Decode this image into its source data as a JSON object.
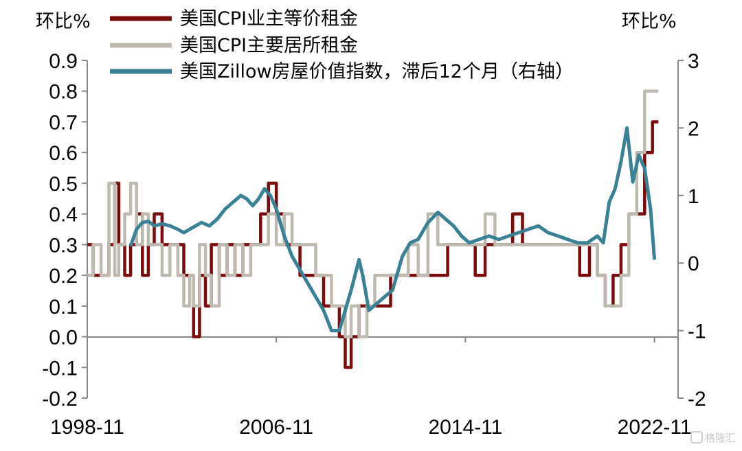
{
  "chart_data": {
    "type": "line",
    "left_axis_unit": "环比%",
    "right_axis_unit": "环比%",
    "x_tick_labels": [
      "1998-11",
      "2006-11",
      "2014-11",
      "2022-11"
    ],
    "x_range": [
      "1998-11",
      "2023-11"
    ],
    "ylim_left": [
      -0.2,
      0.9
    ],
    "ylim_right": [
      -2,
      3
    ],
    "y_left_ticks": [
      "0.9",
      "0.8",
      "0.7",
      "0.6",
      "0.5",
      "0.4",
      "0.3",
      "0.2",
      "0.1",
      "0.0",
      "-0.1",
      "-0.2"
    ],
    "y_right_ticks": [
      "3",
      "2",
      "1",
      "0",
      "-1",
      "-2"
    ],
    "grid": false,
    "legend_position": "top",
    "series": [
      {
        "name": "美国CPI业主等价租金",
        "axis": "left",
        "color": "#7b0c0c",
        "points": [
          [
            "1998-11",
            0.3
          ],
          [
            "1999-02",
            0.2
          ],
          [
            "1999-06",
            0.2
          ],
          [
            "1999-10",
            0.3
          ],
          [
            "2000-01",
            0.5
          ],
          [
            "2000-03",
            0.3
          ],
          [
            "2000-06",
            0.2
          ],
          [
            "2000-09",
            0.3
          ],
          [
            "2000-12",
            0.4
          ],
          [
            "2001-03",
            0.2
          ],
          [
            "2001-06",
            0.3
          ],
          [
            "2001-09",
            0.4
          ],
          [
            "2002-01",
            0.3
          ],
          [
            "2002-05",
            0.3
          ],
          [
            "2002-09",
            0.3
          ],
          [
            "2002-12",
            0.2
          ],
          [
            "2003-03",
            0.2
          ],
          [
            "2003-05",
            0.0
          ],
          [
            "2003-08",
            0.2
          ],
          [
            "2003-11",
            0.1
          ],
          [
            "2004-02",
            0.3
          ],
          [
            "2004-06",
            0.2
          ],
          [
            "2004-10",
            0.3
          ],
          [
            "2005-02",
            0.2
          ],
          [
            "2005-06",
            0.3
          ],
          [
            "2005-10",
            0.3
          ],
          [
            "2006-03",
            0.4
          ],
          [
            "2006-07",
            0.5
          ],
          [
            "2006-11",
            0.4
          ],
          [
            "2007-03",
            0.3
          ],
          [
            "2007-07",
            0.3
          ],
          [
            "2007-11",
            0.2
          ],
          [
            "2008-03",
            0.2
          ],
          [
            "2008-07",
            0.2
          ],
          [
            "2008-11",
            0.1
          ],
          [
            "2009-03",
            0.1
          ],
          [
            "2009-07",
            0.0
          ],
          [
            "2009-10",
            -0.1
          ],
          [
            "2010-01",
            0.0
          ],
          [
            "2010-05",
            0.1
          ],
          [
            "2010-09",
            0.1
          ],
          [
            "2011-01",
            0.1
          ],
          [
            "2011-05",
            0.1
          ],
          [
            "2011-09",
            0.2
          ],
          [
            "2012-01",
            0.2
          ],
          [
            "2012-06",
            0.2
          ],
          [
            "2012-11",
            0.2
          ],
          [
            "2013-04",
            0.2
          ],
          [
            "2013-09",
            0.2
          ],
          [
            "2014-02",
            0.3
          ],
          [
            "2014-07",
            0.3
          ],
          [
            "2014-11",
            0.3
          ],
          [
            "2015-04",
            0.2
          ],
          [
            "2015-09",
            0.3
          ],
          [
            "2016-02",
            0.3
          ],
          [
            "2016-07",
            0.3
          ],
          [
            "2016-11",
            0.4
          ],
          [
            "2017-04",
            0.3
          ],
          [
            "2017-09",
            0.3
          ],
          [
            "2018-02",
            0.3
          ],
          [
            "2018-07",
            0.3
          ],
          [
            "2018-11",
            0.3
          ],
          [
            "2019-04",
            0.3
          ],
          [
            "2019-09",
            0.2
          ],
          [
            "2020-02",
            0.3
          ],
          [
            "2020-06",
            0.2
          ],
          [
            "2020-10",
            0.1
          ],
          [
            "2021-02",
            0.2
          ],
          [
            "2021-06",
            0.3
          ],
          [
            "2021-10",
            0.4
          ],
          [
            "2022-02",
            0.4
          ],
          [
            "2022-06",
            0.6
          ],
          [
            "2022-10",
            0.7
          ],
          [
            "2023-01",
            0.7
          ]
        ]
      },
      {
        "name": "美国CPI主要居所租金",
        "axis": "left",
        "color": "#bfbab0",
        "points": [
          [
            "1998-11",
            0.2
          ],
          [
            "1999-02",
            0.3
          ],
          [
            "1999-06",
            0.2
          ],
          [
            "1999-10",
            0.5
          ],
          [
            "2000-01",
            0.2
          ],
          [
            "2000-03",
            0.3
          ],
          [
            "2000-06",
            0.4
          ],
          [
            "2000-09",
            0.5
          ],
          [
            "2000-12",
            0.3
          ],
          [
            "2001-03",
            0.4
          ],
          [
            "2001-06",
            0.3
          ],
          [
            "2001-09",
            0.3
          ],
          [
            "2002-01",
            0.2
          ],
          [
            "2002-05",
            0.3
          ],
          [
            "2002-09",
            0.2
          ],
          [
            "2002-12",
            0.1
          ],
          [
            "2003-03",
            0.2
          ],
          [
            "2003-05",
            0.1
          ],
          [
            "2003-08",
            0.3
          ],
          [
            "2003-11",
            0.2
          ],
          [
            "2004-02",
            0.1
          ],
          [
            "2004-06",
            0.3
          ],
          [
            "2004-10",
            0.2
          ],
          [
            "2005-02",
            0.3
          ],
          [
            "2005-06",
            0.2
          ],
          [
            "2005-10",
            0.3
          ],
          [
            "2006-03",
            0.3
          ],
          [
            "2006-07",
            0.4
          ],
          [
            "2006-11",
            0.3
          ],
          [
            "2007-03",
            0.4
          ],
          [
            "2007-07",
            0.3
          ],
          [
            "2007-11",
            0.3
          ],
          [
            "2008-03",
            0.3
          ],
          [
            "2008-07",
            0.2
          ],
          [
            "2008-11",
            0.2
          ],
          [
            "2009-03",
            0.1
          ],
          [
            "2009-07",
            0.1
          ],
          [
            "2009-10",
            0.0
          ],
          [
            "2010-01",
            0.1
          ],
          [
            "2010-05",
            0.0
          ],
          [
            "2010-09",
            0.1
          ],
          [
            "2011-01",
            0.2
          ],
          [
            "2011-05",
            0.2
          ],
          [
            "2011-09",
            0.2
          ],
          [
            "2012-01",
            0.2
          ],
          [
            "2012-06",
            0.3
          ],
          [
            "2012-11",
            0.2
          ],
          [
            "2013-04",
            0.4
          ],
          [
            "2013-09",
            0.3
          ],
          [
            "2014-02",
            0.3
          ],
          [
            "2014-07",
            0.3
          ],
          [
            "2014-11",
            0.3
          ],
          [
            "2015-04",
            0.3
          ],
          [
            "2015-09",
            0.4
          ],
          [
            "2016-02",
            0.3
          ],
          [
            "2016-07",
            0.3
          ],
          [
            "2016-11",
            0.3
          ],
          [
            "2017-04",
            0.3
          ],
          [
            "2017-09",
            0.3
          ],
          [
            "2018-02",
            0.3
          ],
          [
            "2018-07",
            0.3
          ],
          [
            "2018-11",
            0.3
          ],
          [
            "2019-04",
            0.3
          ],
          [
            "2019-09",
            0.3
          ],
          [
            "2020-02",
            0.3
          ],
          [
            "2020-06",
            0.2
          ],
          [
            "2020-10",
            0.1
          ],
          [
            "2021-02",
            0.1
          ],
          [
            "2021-06",
            0.2
          ],
          [
            "2021-10",
            0.4
          ],
          [
            "2022-02",
            0.6
          ],
          [
            "2022-06",
            0.8
          ],
          [
            "2022-10",
            0.8
          ],
          [
            "2023-01",
            0.8
          ]
        ]
      },
      {
        "name": "美国Zillow房屋价值指数，滞后12个月（右轴）",
        "axis": "right",
        "color": "#3b8196",
        "points": [
          [
            "2000-09",
            0.25
          ],
          [
            "2000-12",
            0.5
          ],
          [
            "2001-03",
            0.6
          ],
          [
            "2001-06",
            0.62
          ],
          [
            "2001-09",
            0.55
          ],
          [
            "2002-01",
            0.58
          ],
          [
            "2002-05",
            0.55
          ],
          [
            "2002-09",
            0.5
          ],
          [
            "2002-12",
            0.45
          ],
          [
            "2003-03",
            0.5
          ],
          [
            "2003-06",
            0.55
          ],
          [
            "2003-09",
            0.6
          ],
          [
            "2004-01",
            0.55
          ],
          [
            "2004-05",
            0.65
          ],
          [
            "2004-09",
            0.8
          ],
          [
            "2005-01",
            0.9
          ],
          [
            "2005-05",
            1.0
          ],
          [
            "2005-08",
            0.95
          ],
          [
            "2005-11",
            0.85
          ],
          [
            "2006-02",
            0.95
          ],
          [
            "2006-05",
            1.1
          ],
          [
            "2006-08",
            1.0
          ],
          [
            "2006-11",
            0.8
          ],
          [
            "2007-03",
            0.4
          ],
          [
            "2007-07",
            0.1
          ],
          [
            "2007-11",
            -0.1
          ],
          [
            "2008-03",
            -0.3
          ],
          [
            "2008-07",
            -0.5
          ],
          [
            "2008-11",
            -0.7
          ],
          [
            "2009-03",
            -1.0
          ],
          [
            "2009-07",
            -1.0
          ],
          [
            "2009-10",
            -0.7
          ],
          [
            "2010-01",
            -0.4
          ],
          [
            "2010-05",
            0.05
          ],
          [
            "2010-07",
            -0.2
          ],
          [
            "2010-10",
            -0.7
          ],
          [
            "2011-02",
            -0.6
          ],
          [
            "2011-06",
            -0.5
          ],
          [
            "2011-10",
            -0.4
          ],
          [
            "2012-03",
            0.1
          ],
          [
            "2012-07",
            0.3
          ],
          [
            "2012-11",
            0.35
          ],
          [
            "2013-04",
            0.6
          ],
          [
            "2013-09",
            0.75
          ],
          [
            "2014-01",
            0.65
          ],
          [
            "2014-05",
            0.55
          ],
          [
            "2014-09",
            0.4
          ],
          [
            "2015-01",
            0.3
          ],
          [
            "2015-06",
            0.35
          ],
          [
            "2015-11",
            0.4
          ],
          [
            "2016-04",
            0.35
          ],
          [
            "2016-09",
            0.4
          ],
          [
            "2017-02",
            0.45
          ],
          [
            "2017-07",
            0.5
          ],
          [
            "2017-12",
            0.55
          ],
          [
            "2018-05",
            0.45
          ],
          [
            "2018-10",
            0.4
          ],
          [
            "2019-03",
            0.35
          ],
          [
            "2019-08",
            0.3
          ],
          [
            "2020-01",
            0.3
          ],
          [
            "2020-06",
            0.4
          ],
          [
            "2020-09",
            0.3
          ],
          [
            "2020-12",
            0.9
          ],
          [
            "2021-03",
            1.1
          ],
          [
            "2021-06",
            1.5
          ],
          [
            "2021-09",
            2.0
          ],
          [
            "2021-12",
            1.2
          ],
          [
            "2022-03",
            1.6
          ],
          [
            "2022-06",
            1.4
          ],
          [
            "2022-09",
            0.8
          ],
          [
            "2022-11",
            0.05
          ]
        ]
      }
    ]
  }
}
